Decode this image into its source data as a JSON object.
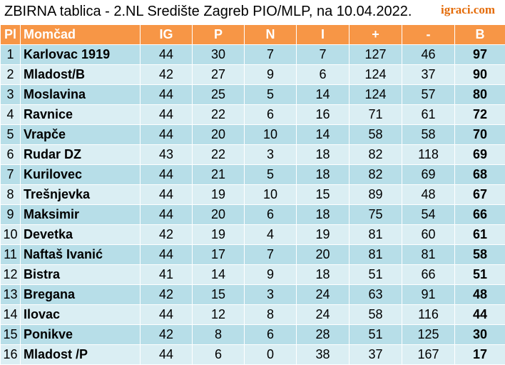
{
  "title": "ZBIRNA tablica - 2.NL Središte Zagreb PIO/MLP, na 10.04.2022.",
  "logo": "igraci.com",
  "headers": [
    "Pl",
    "Momčad",
    "IG",
    "P",
    "N",
    "I",
    "+",
    "-",
    "B"
  ],
  "rows": [
    {
      "pl": "1",
      "team": "Karlovac 1919",
      "ig": "44",
      "p": "30",
      "n": "7",
      "i": "7",
      "plus": "127",
      "minus": "46",
      "b": "97"
    },
    {
      "pl": "2",
      "team": "Mladost/B",
      "ig": "42",
      "p": "27",
      "n": "9",
      "i": "6",
      "plus": "124",
      "minus": "37",
      "b": "90"
    },
    {
      "pl": "3",
      "team": "Moslavina",
      "ig": "44",
      "p": "25",
      "n": "5",
      "i": "14",
      "plus": "124",
      "minus": "57",
      "b": "80"
    },
    {
      "pl": "4",
      "team": "Ravnice",
      "ig": "44",
      "p": "22",
      "n": "6",
      "i": "16",
      "plus": "71",
      "minus": "61",
      "b": "72"
    },
    {
      "pl": "5",
      "team": "Vrapče",
      "ig": "44",
      "p": "20",
      "n": "10",
      "i": "14",
      "plus": "58",
      "minus": "58",
      "b": "70"
    },
    {
      "pl": "6",
      "team": "Rudar DZ",
      "ig": "43",
      "p": "22",
      "n": "3",
      "i": "18",
      "plus": "82",
      "minus": "118",
      "b": "69"
    },
    {
      "pl": "7",
      "team": "Kurilovec",
      "ig": "44",
      "p": "21",
      "n": "5",
      "i": "18",
      "plus": "82",
      "minus": "69",
      "b": "68"
    },
    {
      "pl": "8",
      "team": "Trešnjevka",
      "ig": "44",
      "p": "19",
      "n": "10",
      "i": "15",
      "plus": "89",
      "minus": "48",
      "b": "67"
    },
    {
      "pl": "9",
      "team": "Maksimir",
      "ig": "44",
      "p": "20",
      "n": "6",
      "i": "18",
      "plus": "75",
      "minus": "54",
      "b": "66"
    },
    {
      "pl": "10",
      "team": "Devetka",
      "ig": "42",
      "p": "19",
      "n": "4",
      "i": "19",
      "plus": "81",
      "minus": "60",
      "b": "61"
    },
    {
      "pl": "11",
      "team": "Naftaš Ivanić",
      "ig": "44",
      "p": "17",
      "n": "7",
      "i": "20",
      "plus": "81",
      "minus": "81",
      "b": "58"
    },
    {
      "pl": "12",
      "team": "Bistra",
      "ig": "41",
      "p": "14",
      "n": "9",
      "i": "18",
      "plus": "51",
      "minus": "66",
      "b": "51"
    },
    {
      "pl": "13",
      "team": "Bregana",
      "ig": "42",
      "p": "15",
      "n": "3",
      "i": "24",
      "plus": "63",
      "minus": "91",
      "b": "48"
    },
    {
      "pl": "14",
      "team": "Ilovac",
      "ig": "44",
      "p": "12",
      "n": "8",
      "i": "24",
      "plus": "58",
      "minus": "116",
      "b": "44"
    },
    {
      "pl": "15",
      "team": "Ponikve",
      "ig": "42",
      "p": "8",
      "n": "6",
      "i": "28",
      "plus": "51",
      "minus": "125",
      "b": "30"
    },
    {
      "pl": "16",
      "team": "Mladost /P",
      "ig": "44",
      "p": "6",
      "n": "0",
      "i": "38",
      "plus": "37",
      "minus": "167",
      "b": "17"
    }
  ],
  "colors": {
    "header_bg": "#f79646",
    "row_odd": "#b7dee8",
    "row_even": "#daeef3",
    "logo": "#e46c0a"
  }
}
